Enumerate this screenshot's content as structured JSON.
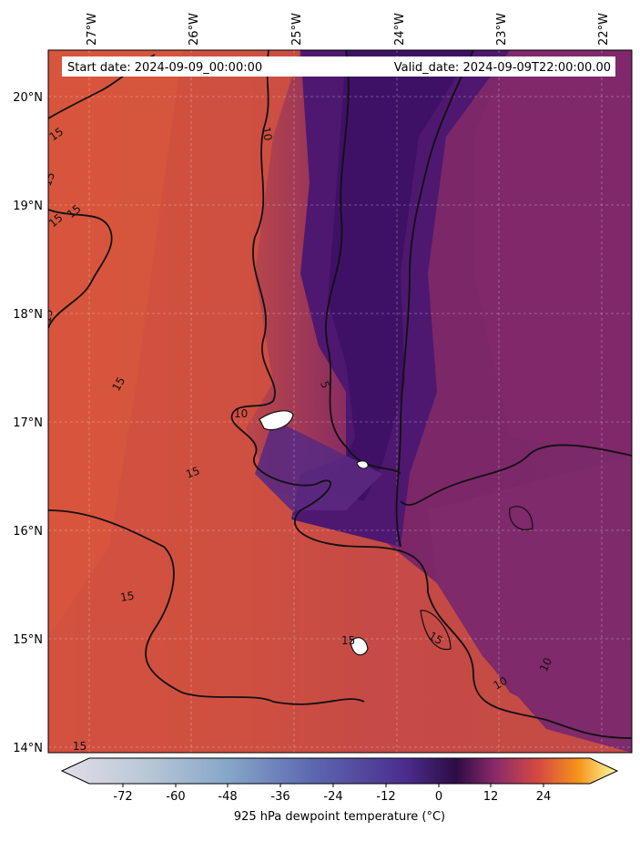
{
  "header": {
    "start_date": "Start date: 2024-09-09_00:00:00",
    "valid_date": "Valid_date: 2024-09-09T22:00:00.00"
  },
  "map": {
    "lon_labels": [
      "27°W",
      "26°W",
      "25°W",
      "24°W",
      "23°W",
      "22°W"
    ],
    "lat_labels": [
      "20°N",
      "19°N",
      "18°N",
      "17°N",
      "16°N",
      "15°N",
      "14°N"
    ],
    "extent": {
      "lon_min": -27.4,
      "lon_max": -21.9,
      "lat_min": 13.95,
      "lat_max": 20.4
    },
    "gridlines": true,
    "contour_labels": [
      "15",
      "15",
      "15",
      "15",
      "15",
      "15",
      "10",
      "10",
      "10",
      "10",
      "10",
      "5",
      "5",
      "15",
      "15",
      "15",
      "15",
      "15"
    ]
  },
  "colorbar": {
    "tick_labels": [
      "-72",
      "-60",
      "-48",
      "-36",
      "-24",
      "-12",
      "0",
      "12",
      "24"
    ],
    "label": "925 hPa dewpoint temperature ($^\\circ$C)",
    "label_rendered": "925 hPa dewpoint temperature (°C)",
    "extend": "both",
    "colormap": "inferno-like",
    "colors": [
      "#e3dce6",
      "#9db6ce",
      "#6b85c0",
      "#5b3aa3",
      "#3a0f5e",
      "#8a2a6a",
      "#d8503e",
      "#f5a21a",
      "#fbfca0"
    ]
  }
}
